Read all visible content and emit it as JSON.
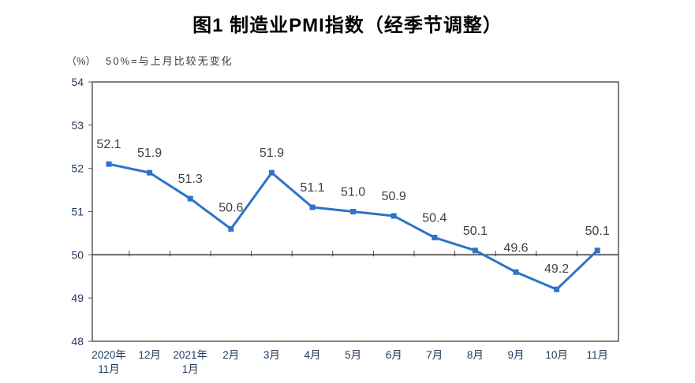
{
  "chart_data": {
    "type": "line",
    "title": "图1 制造业PMI指数（经季节调整）",
    "unit_label": "（%）",
    "note": "50%=与上月比较无变化",
    "categories": [
      [
        "2020年",
        "11月"
      ],
      [
        "12月"
      ],
      [
        "2021年",
        "1月"
      ],
      [
        "2月"
      ],
      [
        "3月"
      ],
      [
        "4月"
      ],
      [
        "5月"
      ],
      [
        "6月"
      ],
      [
        "7月"
      ],
      [
        "8月"
      ],
      [
        "9月"
      ],
      [
        "10月"
      ],
      [
        "11月"
      ]
    ],
    "values": [
      52.1,
      51.9,
      51.3,
      50.6,
      51.9,
      51.1,
      51.0,
      50.9,
      50.4,
      50.1,
      49.6,
      49.2,
      50.1
    ],
    "value_labels": [
      "52.1",
      "51.9",
      "51.3",
      "50.6",
      "51.9",
      "51.1",
      "51.0",
      "50.9",
      "50.4",
      "50.1",
      "49.6",
      "49.2",
      "50.1"
    ],
    "ylim": [
      48,
      54
    ],
    "ytick_step": 1,
    "yticks": [
      48,
      49,
      50,
      51,
      52,
      53,
      54
    ],
    "reference_line": 50,
    "marker": "square",
    "grid": "off",
    "legend": "none",
    "line_color": "#2D73C8",
    "value_label_color": "#404040",
    "axis_color": "#595959",
    "reference_line_color": "#404040",
    "tick_label_color": "#1E3A5F"
  }
}
